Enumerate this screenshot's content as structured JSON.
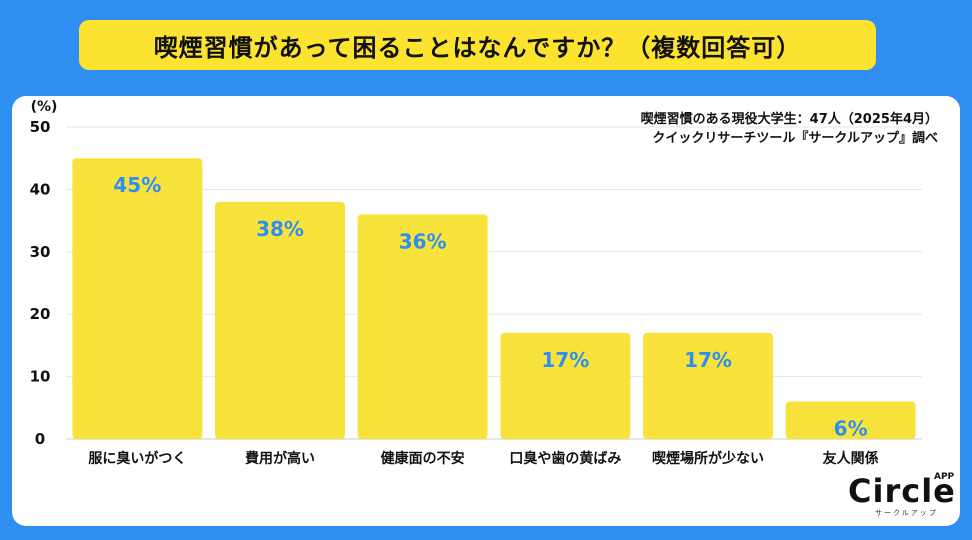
{
  "title": "喫煙習慣があって困ることはなんですか？（複数回答可）",
  "source_line1": "喫煙習慣のある現役大学生：47人（2025年4月）",
  "source_line2": "クイックリサーチツール『サークルアップ』調べ",
  "logo": {
    "main": "Circle",
    "app": "APP",
    "sub": "サークルアップ"
  },
  "colors": {
    "background": "#2f8ff0",
    "bar": "#f7e33c",
    "label": "#2f8ff0",
    "title_bg": "#fbe330"
  },
  "chart_data": {
    "type": "bar",
    "title": "喫煙習慣があって困ることはなんですか？（複数回答可）",
    "ylabel": "(%)",
    "xlabel": "",
    "ylim": [
      0,
      50
    ],
    "yticks": [
      0,
      10,
      20,
      30,
      40,
      50
    ],
    "grid": true,
    "categories": [
      "服に臭いがつく",
      "費用が高い",
      "健康面の不安",
      "口臭や歯の黄ばみ",
      "喫煙場所が少ない",
      "友人関係"
    ],
    "values": [
      45,
      38,
      36,
      17,
      17,
      6
    ],
    "data_labels": [
      "45%",
      "38%",
      "36%",
      "17%",
      "17%",
      "6%"
    ]
  }
}
